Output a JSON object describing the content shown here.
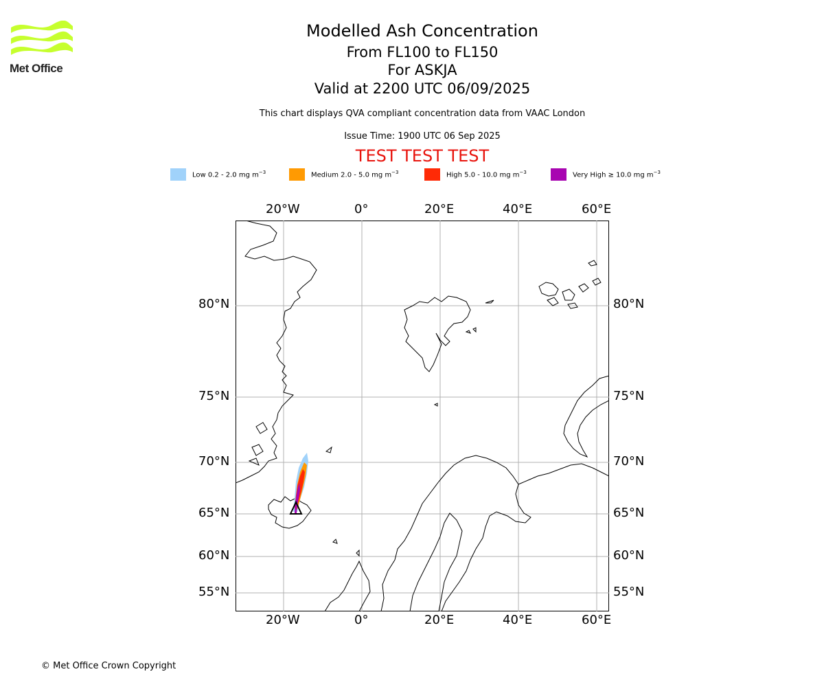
{
  "logo": {
    "text": "Met Office",
    "color": "#c6ff2e"
  },
  "title": {
    "main": "Modelled Ash Concentration",
    "levels": "From FL100 to FL150",
    "volcano": "For ASKJA",
    "valid": "Valid at 2200 UTC 06/09/2025",
    "description": "This chart displays QVA compliant concentration data from VAAC London",
    "issue_time": "Issue Time: 1900 UTC 06 Sep 2025",
    "test_banner": "TEST TEST TEST"
  },
  "legend": [
    {
      "label": "Low 0.2 - 2.0 mg m",
      "color": "#a0d2fa"
    },
    {
      "label": "Medium 2.0 - 5.0 mg m",
      "color": "#ff9a02"
    },
    {
      "label": "High 5.0 - 10.0 mg m",
      "color": "#ff2a06"
    },
    {
      "label": "Very High ≥ 10.0 mg m",
      "color": "#a805b1"
    }
  ],
  "legend_unit_exponent": "−3",
  "axes": {
    "longitude_labels": [
      "20°W",
      "0°",
      "20°E",
      "40°E",
      "60°E"
    ],
    "latitude_labels": [
      "80°N",
      "75°N",
      "70°N",
      "65°N",
      "60°N",
      "55°N"
    ]
  },
  "copyright": "© Met Office Crown Copyright"
}
